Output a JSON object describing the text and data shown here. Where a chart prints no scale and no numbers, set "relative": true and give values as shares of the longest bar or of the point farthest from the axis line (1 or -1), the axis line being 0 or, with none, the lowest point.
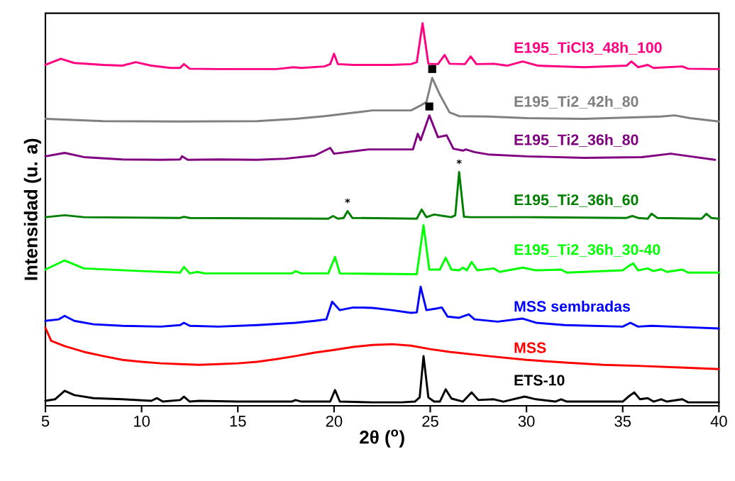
{
  "chart_data": {
    "type": "line",
    "relative": true,
    "xlabel": "2θ ($^{o}$)",
    "ylabel": "Intensidad (u. a)",
    "xlim": [
      5,
      40
    ],
    "xticks": [
      5,
      10,
      15,
      20,
      25,
      30,
      35,
      40
    ],
    "series": [
      {
        "name": "E195_TiCl3_48h_100",
        "color": "#ff0080",
        "x": [
          5,
          5.8,
          6.5,
          8,
          9,
          9.7,
          10.5,
          11.5,
          12.0,
          12.2,
          12.5,
          14,
          17,
          17.9,
          18.3,
          19.5,
          19.8,
          20.0,
          20.2,
          21,
          23,
          24.0,
          24.3,
          24.6,
          24.9,
          25.4,
          25.75,
          26.0,
          26.8,
          27.1,
          27.4,
          28.3,
          29.0,
          29.8,
          30.6,
          33,
          35.2,
          35.45,
          35.8,
          36.3,
          36.6,
          38.1,
          38.4,
          40
        ],
        "values": [
          0.891,
          0.907,
          0.896,
          0.891,
          0.889,
          0.898,
          0.889,
          0.883,
          0.883,
          0.893,
          0.881,
          0.88,
          0.88,
          0.885,
          0.883,
          0.887,
          0.893,
          0.92,
          0.893,
          0.891,
          0.891,
          0.893,
          0.898,
          1.0,
          0.894,
          0.893,
          0.917,
          0.894,
          0.893,
          0.913,
          0.893,
          0.894,
          0.889,
          0.9,
          0.889,
          0.885,
          0.889,
          0.9,
          0.885,
          0.891,
          0.883,
          0.887,
          0.881,
          0.88
        ]
      },
      {
        "name": "E195_Ti2_42h_80",
        "color": "#808080",
        "x": [
          5,
          8,
          12,
          16,
          18,
          19.5,
          20.5,
          22,
          24,
          24.5,
          24.8,
          25.1,
          25.5,
          26.0,
          26.5,
          28,
          30,
          33,
          37,
          37.7,
          38.5,
          40
        ],
        "values": [
          0.75,
          0.744,
          0.743,
          0.744,
          0.75,
          0.757,
          0.763,
          0.772,
          0.772,
          0.785,
          0.794,
          0.857,
          0.813,
          0.767,
          0.757,
          0.756,
          0.752,
          0.75,
          0.756,
          0.759,
          0.752,
          0.743
        ]
      },
      {
        "name": "E195_Ti2_36h_80",
        "color": "#800080",
        "x": [
          5,
          6,
          7,
          9,
          11,
          12,
          12.1,
          12.4,
          14,
          16,
          17.5,
          19,
          19.8,
          20.0,
          21.8,
          24.1,
          24.35,
          24.5,
          24.95,
          25.4,
          25.85,
          26.2,
          26.7,
          26.85,
          27.3,
          28,
          30,
          33,
          36,
          37.5,
          38.5,
          39.8
        ],
        "values": [
          0.652,
          0.661,
          0.65,
          0.644,
          0.643,
          0.644,
          0.652,
          0.643,
          0.644,
          0.643,
          0.646,
          0.654,
          0.674,
          0.659,
          0.67,
          0.67,
          0.711,
          0.694,
          0.759,
          0.702,
          0.707,
          0.672,
          0.667,
          0.67,
          0.663,
          0.657,
          0.652,
          0.648,
          0.65,
          0.659,
          0.652,
          0.643
        ]
      },
      {
        "name": "E195_Ti2_36h_60",
        "color": "#008000",
        "x": [
          5,
          6,
          7,
          12,
          12.2,
          12.5,
          19.7,
          19.95,
          20.2,
          20.5,
          20.7,
          20.95,
          24.3,
          24.55,
          24.8,
          25.2,
          25.7,
          26.1,
          26.3,
          26.5,
          26.75,
          27.1,
          30,
          35.2,
          35.5,
          35.8,
          36.3,
          36.5,
          36.8,
          39.1,
          39.35,
          39.6,
          40
        ],
        "values": [
          0.493,
          0.498,
          0.493,
          0.491,
          0.494,
          0.491,
          0.489,
          0.496,
          0.489,
          0.491,
          0.509,
          0.491,
          0.489,
          0.513,
          0.493,
          0.5,
          0.496,
          0.493,
          0.498,
          0.611,
          0.494,
          0.493,
          0.493,
          0.491,
          0.496,
          0.491,
          0.489,
          0.502,
          0.491,
          0.489,
          0.502,
          0.491,
          0.489
        ]
      },
      {
        "name": "E195_Ti2_36h_30-40",
        "color": "#00ff00",
        "x": [
          5,
          6,
          7,
          10,
          12,
          12.2,
          12.5,
          12.9,
          13.3,
          17.8,
          18,
          18.3,
          19.7,
          20.05,
          20.3,
          24.3,
          24.65,
          24.95,
          25.5,
          25.8,
          26.1,
          26.5,
          26.7,
          26.9,
          27.15,
          27.45,
          28.3,
          28.6,
          29.8,
          30.5,
          31.8,
          32.1,
          35.0,
          35.3,
          35.55,
          35.8,
          36.3,
          36.6,
          37.0,
          37.3,
          38.1,
          38.4,
          40
        ],
        "values": [
          0.356,
          0.38,
          0.359,
          0.352,
          0.348,
          0.363,
          0.346,
          0.35,
          0.346,
          0.346,
          0.352,
          0.346,
          0.346,
          0.389,
          0.346,
          0.344,
          0.472,
          0.356,
          0.356,
          0.387,
          0.356,
          0.354,
          0.361,
          0.354,
          0.376,
          0.354,
          0.359,
          0.35,
          0.361,
          0.354,
          0.356,
          0.348,
          0.354,
          0.365,
          0.372,
          0.354,
          0.359,
          0.352,
          0.357,
          0.35,
          0.356,
          0.348,
          0.348
        ]
      },
      {
        "name": "MSS sembradas",
        "color": "#0000ff",
        "x": [
          5,
          5.7,
          6.0,
          6.5,
          7.5,
          9,
          11,
          12,
          12.2,
          12.5,
          14,
          16,
          18,
          19,
          19.6,
          19.9,
          20.3,
          21,
          22,
          23,
          24,
          24.3,
          24.5,
          24.8,
          25.3,
          25.6,
          25.9,
          26.5,
          27.0,
          27.3,
          28.5,
          29.8,
          30.5,
          32,
          35,
          35.4,
          35.8,
          36.5,
          38,
          40
        ],
        "values": [
          0.222,
          0.226,
          0.235,
          0.222,
          0.213,
          0.209,
          0.207,
          0.211,
          0.217,
          0.209,
          0.207,
          0.211,
          0.217,
          0.222,
          0.226,
          0.272,
          0.25,
          0.257,
          0.256,
          0.25,
          0.243,
          0.244,
          0.311,
          0.25,
          0.254,
          0.257,
          0.233,
          0.23,
          0.239,
          0.226,
          0.22,
          0.228,
          0.217,
          0.211,
          0.207,
          0.217,
          0.207,
          0.209,
          0.206,
          0.202
        ]
      },
      {
        "name": "MSS",
        "color": "#ff0000",
        "x": [
          5.0,
          5.3,
          6,
          7,
          8,
          9,
          10,
          11,
          12,
          13,
          14,
          15,
          16,
          17,
          18,
          19,
          20,
          21,
          22,
          23,
          24,
          25,
          26,
          28,
          30,
          32,
          34,
          36,
          38,
          40
        ],
        "values": [
          0.204,
          0.17,
          0.156,
          0.141,
          0.13,
          0.12,
          0.115,
          0.111,
          0.109,
          0.107,
          0.109,
          0.111,
          0.115,
          0.122,
          0.13,
          0.139,
          0.146,
          0.154,
          0.159,
          0.161,
          0.157,
          0.148,
          0.141,
          0.13,
          0.12,
          0.113,
          0.107,
          0.104,
          0.1,
          0.096
        ]
      },
      {
        "name": "ETS-10",
        "color": "#000000",
        "x": [
          5.0,
          5.5,
          6.0,
          6.5,
          7.5,
          9,
          10.5,
          10.8,
          11.1,
          12.0,
          12.2,
          12.5,
          13,
          15,
          17.8,
          18.0,
          18.3,
          19.8,
          20.05,
          20.3,
          22,
          23.5,
          24.2,
          24.45,
          24.65,
          24.9,
          25.2,
          25.5,
          25.8,
          26.1,
          26.7,
          27.15,
          27.5,
          28.3,
          28.8,
          29.9,
          30.5,
          31.5,
          31.8,
          32.1,
          35.0,
          35.3,
          35.6,
          35.9,
          36.3,
          36.6,
          37.0,
          37.3,
          38.1,
          38.4,
          40
        ],
        "values": [
          0.013,
          0.017,
          0.039,
          0.028,
          0.02,
          0.017,
          0.013,
          0.02,
          0.011,
          0.015,
          0.024,
          0.011,
          0.013,
          0.011,
          0.011,
          0.015,
          0.011,
          0.011,
          0.041,
          0.011,
          0.009,
          0.009,
          0.011,
          0.022,
          0.13,
          0.022,
          0.011,
          0.011,
          0.043,
          0.019,
          0.011,
          0.035,
          0.015,
          0.017,
          0.011,
          0.024,
          0.017,
          0.011,
          0.017,
          0.011,
          0.011,
          0.024,
          0.035,
          0.017,
          0.02,
          0.011,
          0.017,
          0.011,
          0.017,
          0.009,
          0.009
        ]
      }
    ],
    "annotations": [
      {
        "text": "*",
        "x": 20.7,
        "y": 0.509
      },
      {
        "text": "*",
        "x": 26.5,
        "y": 0.611
      },
      {
        "text": "■",
        "x": 25.1,
        "y": 0.857
      },
      {
        "text": "■",
        "x": 24.95,
        "y": 0.759
      }
    ]
  }
}
